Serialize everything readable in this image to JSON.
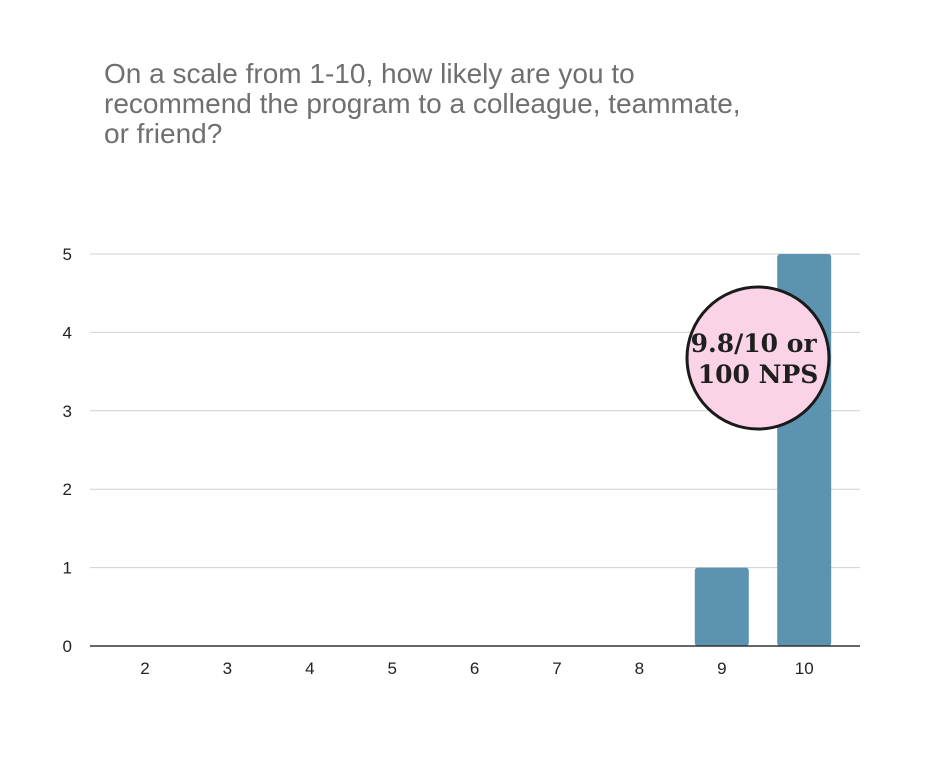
{
  "chart_data": {
    "type": "bar",
    "title_lines": [
      "On a scale from 1-10, how likely are you to",
      "recommend the program to a colleague, teammate,",
      "or friend?"
    ],
    "categories": [
      "2",
      "3",
      "4",
      "5",
      "6",
      "7",
      "8",
      "9",
      "10"
    ],
    "values": [
      0,
      0,
      0,
      0,
      0,
      0,
      0,
      1,
      5
    ],
    "ylim": [
      0,
      5
    ],
    "yticks": [
      "0",
      "1",
      "2",
      "3",
      "4",
      "5"
    ],
    "grid": true,
    "bar_color": "#5b93b1",
    "annotation": {
      "lines": [
        "9.8/10 or",
        "100 NPS"
      ],
      "fill": "#fbd3e6",
      "stroke": "#1a1a1a"
    }
  }
}
